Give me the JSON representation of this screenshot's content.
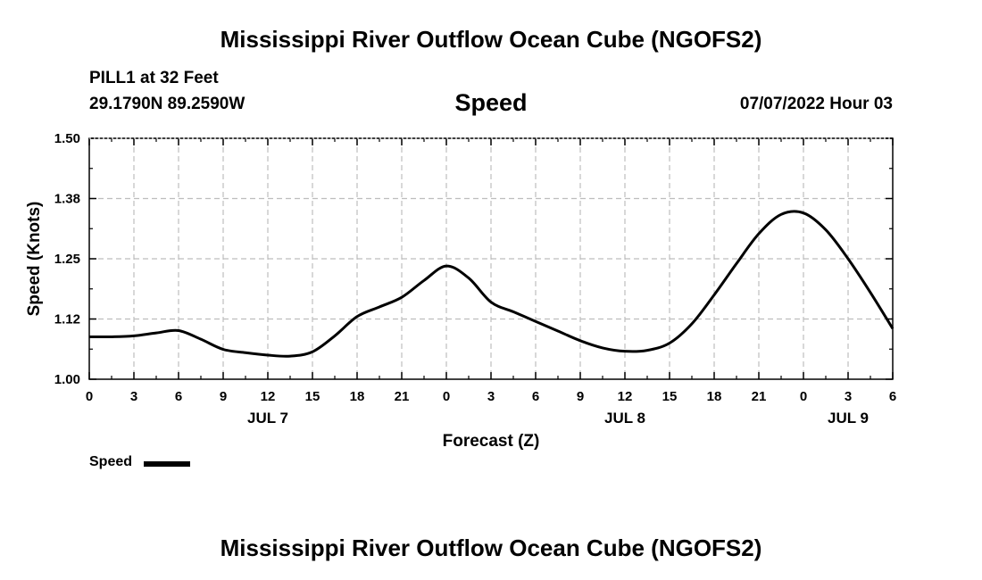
{
  "header": {
    "title": "Mississippi River Outflow Ocean Cube (NGOFS2)",
    "station": "PILL1 at 32 Feet",
    "coords": "29.1790N  89.2590W",
    "datetime": "07/07/2022 Hour 03"
  },
  "footer": {
    "title": "Mississippi River Outflow Ocean Cube (NGOFS2)"
  },
  "legend": {
    "label": "Speed"
  },
  "colors": {
    "line": "#000000",
    "grid": "#bdbdbd",
    "background": "#ffffff"
  },
  "chart_data": {
    "type": "line",
    "title": "Speed",
    "xlabel": "Forecast (Z)",
    "ylabel": "Speed (Knots)",
    "xlim": [
      0,
      54
    ],
    "ylim": [
      1.0,
      1.5
    ],
    "x_ticks": [
      0,
      3,
      6,
      9,
      12,
      15,
      18,
      21,
      24,
      27,
      30,
      33,
      36,
      39,
      42,
      45,
      48,
      51,
      54
    ],
    "x_tick_labels": [
      "0",
      "3",
      "6",
      "9",
      "12",
      "15",
      "18",
      "21",
      "0",
      "3",
      "6",
      "9",
      "12",
      "15",
      "18",
      "21",
      "0",
      "3",
      "6"
    ],
    "y_ticks": [
      1.0,
      1.125,
      1.25,
      1.375,
      1.5
    ],
    "y_tick_labels": [
      "1.00",
      "1.12",
      "1.25",
      "1.38",
      "1.50"
    ],
    "date_labels": [
      {
        "x": 12,
        "label": "JUL 7"
      },
      {
        "x": 36,
        "label": "JUL 8"
      },
      {
        "x": 51,
        "label": "JUL 9"
      }
    ],
    "grid": true,
    "legend_position": "bottom-left",
    "series": [
      {
        "name": "Speed",
        "x": [
          0,
          1.5,
          3,
          4.5,
          6,
          7.5,
          9,
          10.5,
          12,
          13.5,
          15,
          16.5,
          18,
          19.5,
          21,
          22.5,
          24,
          25.5,
          27,
          28.5,
          30,
          31.5,
          33,
          34.5,
          36,
          37.5,
          39,
          40.5,
          42,
          43.5,
          45,
          46.5,
          48,
          49.5,
          51,
          52.5,
          54
        ],
        "values": [
          1.088,
          1.088,
          1.09,
          1.096,
          1.101,
          1.083,
          1.062,
          1.055,
          1.05,
          1.048,
          1.057,
          1.09,
          1.13,
          1.15,
          1.17,
          1.205,
          1.235,
          1.21,
          1.16,
          1.14,
          1.12,
          1.1,
          1.08,
          1.065,
          1.058,
          1.06,
          1.075,
          1.115,
          1.175,
          1.24,
          1.302,
          1.342,
          1.345,
          1.31,
          1.25,
          1.18,
          1.105
        ]
      }
    ]
  }
}
